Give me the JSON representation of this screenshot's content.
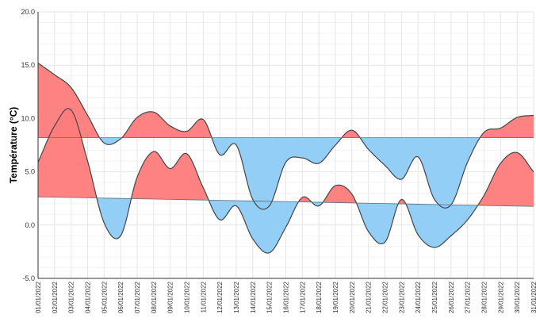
{
  "chart_data": {
    "type": "area",
    "title": "",
    "ylabel": "Température (°C)",
    "xlabel": "",
    "ylim": [
      -5,
      20
    ],
    "yticks": [
      -5,
      0,
      5,
      10,
      15,
      20
    ],
    "ytick_labels": [
      "-5.0",
      "0.0",
      "5.0",
      "10.0",
      "15.0",
      "20.0"
    ],
    "grid": true,
    "colors": {
      "above": "#ff7b7b",
      "below": "#8ccbf5",
      "line": "#444444",
      "title": "#5b9bd5"
    },
    "categories": [
      "01/01/2022",
      "02/01/2022",
      "03/01/2022",
      "04/01/2022",
      "05/01/2022",
      "06/01/2022",
      "07/01/2022",
      "08/01/2022",
      "09/01/2022",
      "10/01/2022",
      "11/01/2022",
      "12/01/2022",
      "13/01/2022",
      "14/01/2022",
      "15/01/2022",
      "16/01/2022",
      "17/01/2022",
      "18/01/2022",
      "19/01/2022",
      "20/01/2022",
      "21/01/2022",
      "22/01/2022",
      "23/01/2022",
      "24/01/2022",
      "25/01/2022",
      "26/01/2022",
      "27/01/2022",
      "28/01/2022",
      "29/01/2022",
      "30/01/2022",
      "31/01/2022"
    ],
    "series": [
      {
        "values": [
          15.2,
          14.1,
          12.9,
          10.3,
          7.7,
          8.1,
          10.1,
          10.6,
          9.3,
          8.8,
          9.9,
          6.6,
          7.5,
          2.4,
          1.8,
          5.9,
          6.3,
          5.8,
          7.5,
          8.9,
          7.1,
          5.6,
          4.3,
          6.4,
          2.4,
          1.9,
          5.9,
          8.7,
          9.1,
          10.1,
          10.3
        ],
        "baseline": [
          8.2,
          8.2,
          8.2,
          8.2,
          8.2,
          8.2,
          8.2,
          8.2,
          8.2,
          8.2,
          8.2,
          8.2,
          8.2,
          8.2,
          8.2,
          8.2,
          8.2,
          8.2,
          8.2,
          8.2,
          8.2,
          8.2,
          8.2,
          8.2,
          8.2,
          8.2,
          8.2,
          8.2,
          8.2,
          8.2,
          8.2
        ]
      },
      {
        "values": [
          5.9,
          9.3,
          10.8,
          6.0,
          0.2,
          -1.0,
          4.5,
          6.9,
          5.3,
          6.7,
          3.5,
          0.5,
          1.8,
          -1.3,
          -2.6,
          -0.2,
          2.6,
          1.8,
          3.7,
          2.9,
          -0.6,
          -1.6,
          2.4,
          -0.9,
          -2.1,
          -1.0,
          0.5,
          2.8,
          5.8,
          6.8,
          5.0
        ],
        "baseline": [
          2.65,
          2.62,
          2.59,
          2.56,
          2.53,
          2.5,
          2.47,
          2.44,
          2.41,
          2.38,
          2.35,
          2.32,
          2.29,
          2.26,
          2.23,
          2.2,
          2.17,
          2.14,
          2.11,
          2.08,
          2.05,
          2.02,
          1.99,
          1.96,
          1.93,
          1.9,
          1.87,
          1.84,
          1.81,
          1.78,
          1.75
        ]
      }
    ]
  }
}
